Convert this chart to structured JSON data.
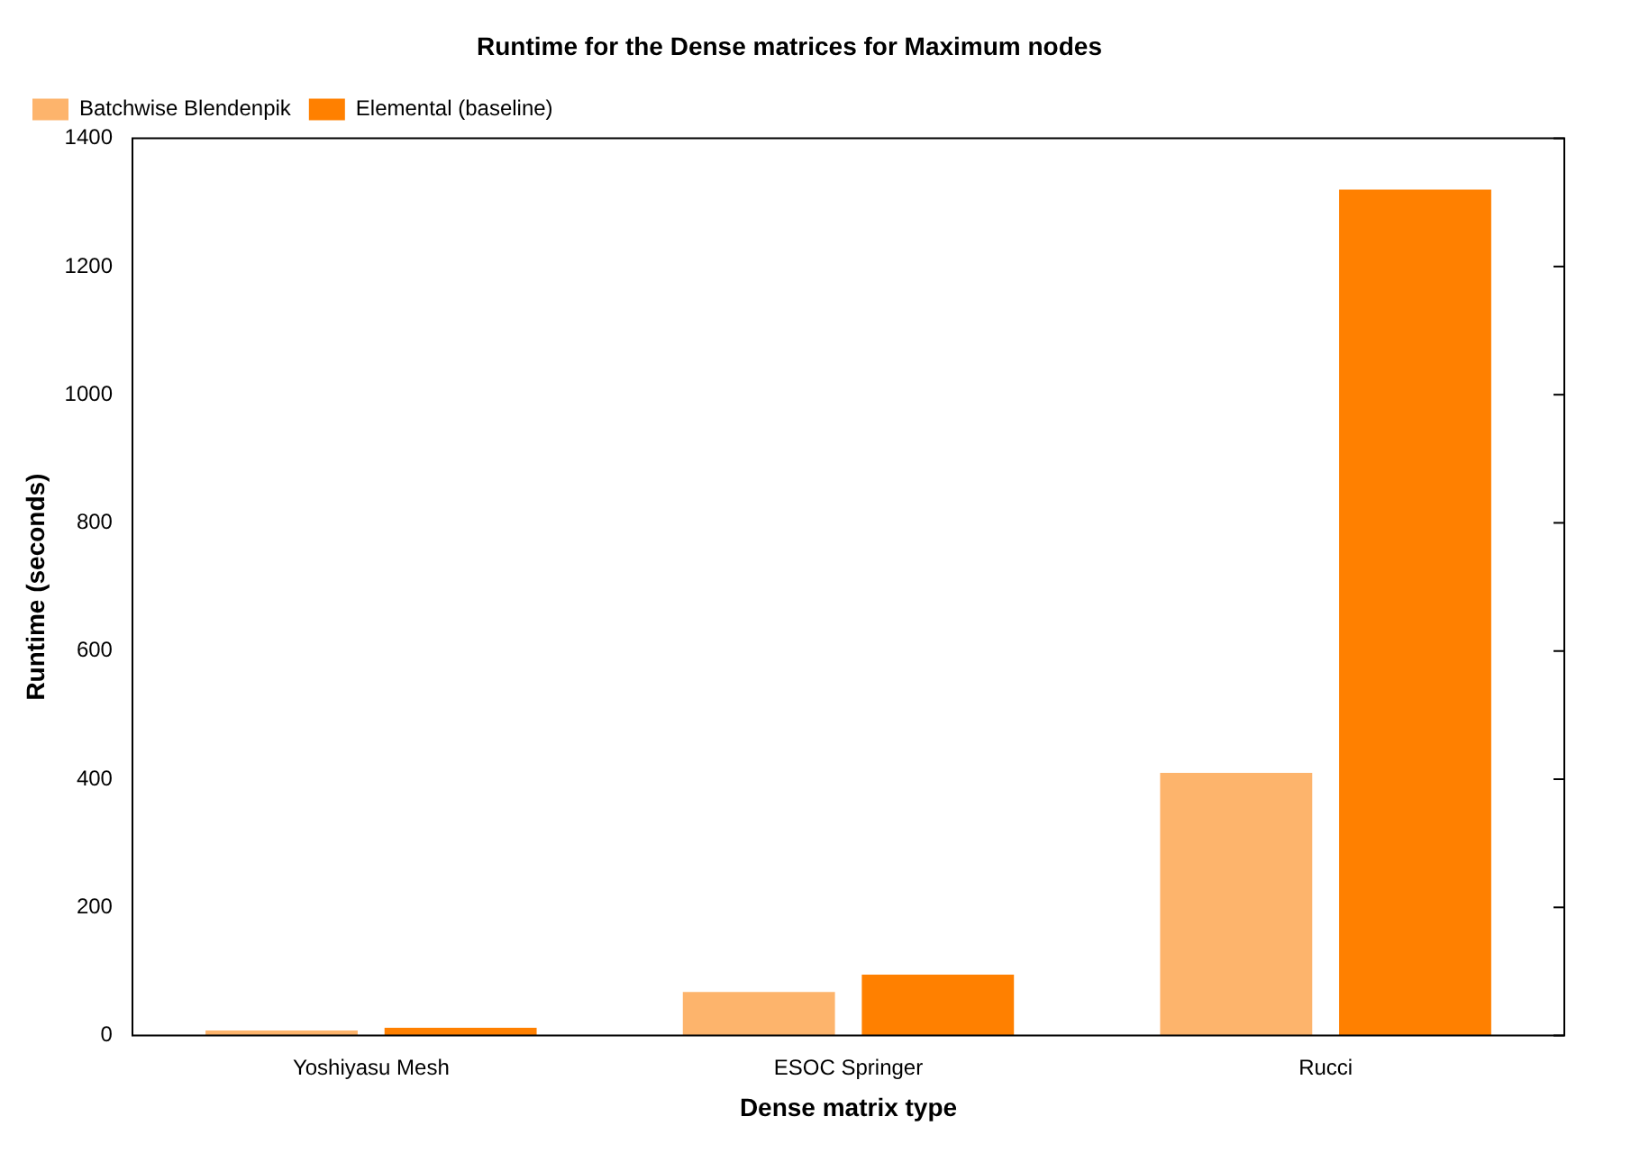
{
  "chart_data": {
    "type": "bar",
    "title": "Runtime for the Dense matrices for Maximum nodes",
    "xlabel": "Dense matrix type",
    "ylabel": "Runtime (seconds)",
    "categories": [
      "Yoshiyasu Mesh",
      "ESOC Springer",
      "Rucci"
    ],
    "series": [
      {
        "name": "Batchwise Blendenpik",
        "color": "#fdb46c",
        "values": [
          8,
          68,
          410
        ]
      },
      {
        "name": "Elemental (baseline)",
        "color": "#ff8000",
        "values": [
          12,
          95,
          1320
        ]
      }
    ],
    "ylim": [
      0,
      1400
    ],
    "yticks": [
      0,
      200,
      400,
      600,
      800,
      1000,
      1200,
      1400
    ],
    "grid": false,
    "legend": "top left"
  }
}
